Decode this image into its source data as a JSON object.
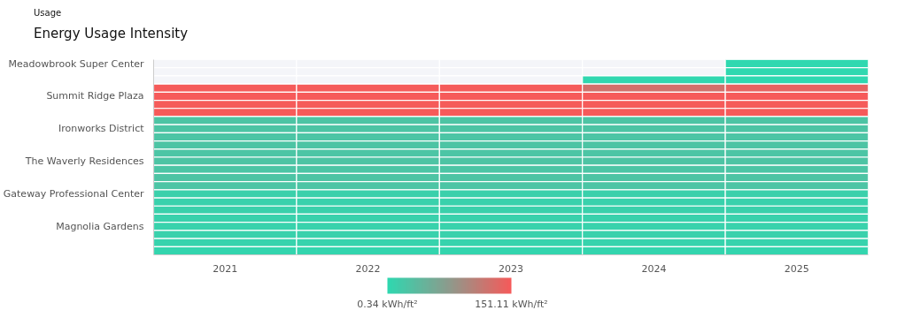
{
  "chart_data": {
    "type": "heatmap",
    "subtitle": "Usage",
    "title": "Energy Usage Intensity",
    "categories": [
      "2021",
      "2022",
      "2023",
      "2024",
      "2025"
    ],
    "y_categories": [
      "Meadowbrook Super Center",
      null,
      null,
      null,
      "Summit Ridge Plaza",
      null,
      null,
      null,
      "Ironworks District",
      null,
      null,
      null,
      "The Waverly Residences",
      null,
      null,
      null,
      "Gateway Professional Center",
      null,
      null,
      null,
      "Magnolia Gardens",
      null,
      null,
      null
    ],
    "cells": [
      [
        null,
        null,
        null,
        null,
        1
      ],
      [
        null,
        null,
        null,
        null,
        1
      ],
      [
        null,
        null,
        null,
        2,
        1
      ],
      [
        150,
        150,
        150,
        125,
        140
      ],
      [
        151,
        151,
        151,
        151,
        151
      ],
      [
        150,
        150,
        150,
        150,
        150
      ],
      [
        151,
        151,
        151,
        151,
        151
      ],
      [
        25,
        25,
        25,
        25,
        25
      ],
      [
        25,
        25,
        25,
        25,
        25
      ],
      [
        24,
        24,
        24,
        24,
        24
      ],
      [
        25,
        25,
        25,
        25,
        25
      ],
      [
        24,
        24,
        24,
        24,
        24
      ],
      [
        25,
        25,
        25,
        25,
        25
      ],
      [
        24,
        24,
        24,
        24,
        24
      ],
      [
        25,
        25,
        25,
        25,
        25
      ],
      [
        24,
        24,
        24,
        24,
        24
      ],
      [
        10,
        10,
        10,
        10,
        10
      ],
      [
        9,
        9,
        9,
        9,
        9
      ],
      [
        10,
        10,
        10,
        10,
        10
      ],
      [
        9,
        9,
        9,
        9,
        9
      ],
      [
        8,
        8,
        8,
        8,
        8
      ],
      [
        9,
        9,
        9,
        9,
        9
      ],
      [
        7,
        7,
        7,
        7,
        7
      ],
      [
        5,
        5,
        5,
        5,
        5
      ]
    ],
    "clim": [
      0.34,
      151.11
    ],
    "grid": false,
    "cticks": [
      {
        "value": 0.34,
        "label": "0.34 kWh/ft²"
      },
      {
        "value": 151.11,
        "label": "151.11 kWh/ft²"
      }
    ]
  }
}
